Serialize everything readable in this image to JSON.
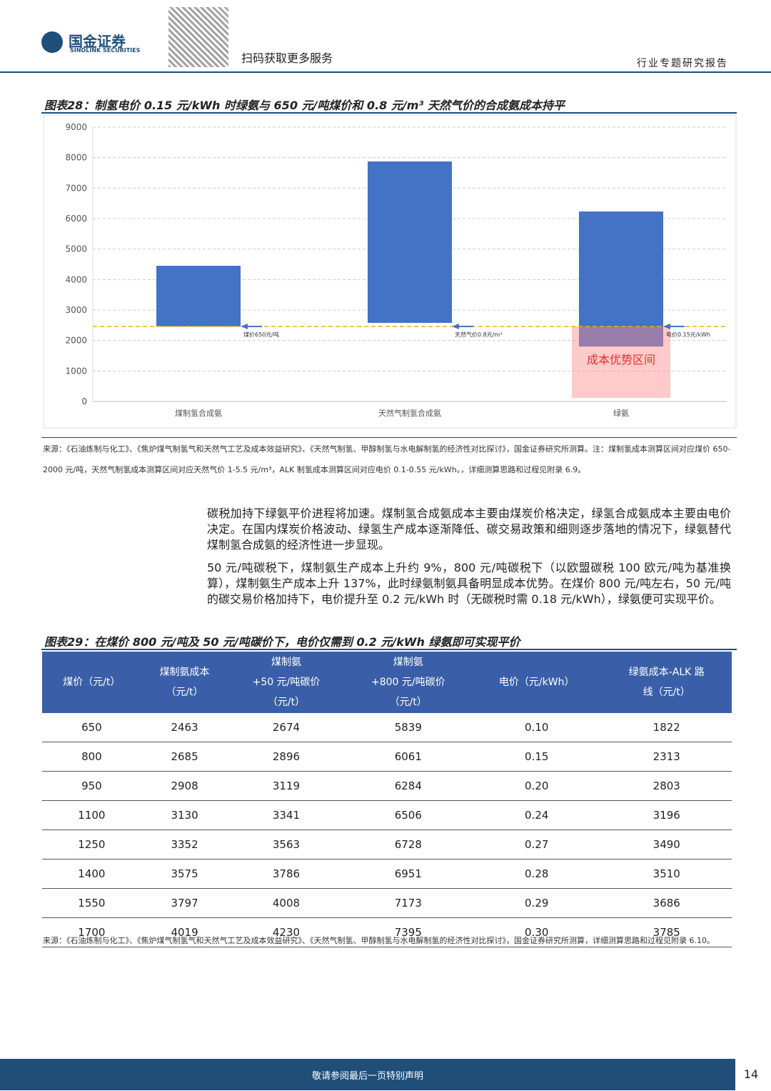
{
  "header": {
    "brand": "国金证券",
    "brand_en": "SINOLINK SECURITIES",
    "qr_text": "扫码获取更多服务",
    "report_type": "行业专题研究报告"
  },
  "figure28_title": "图表28：制氢电价 0.15 元/kWh 时绿氨与 650 元/吨煤价和 0.8 元/m³ 天然气价的合成氨成本持平",
  "chart_data": {
    "type": "floating-bar",
    "categories": [
      "煤制氢合成氨",
      "天然气制氢合成氨",
      "绿氨"
    ],
    "low": [
      2463,
      2580,
      1805
    ],
    "high": [
      4453,
      7875,
      6234
    ],
    "color": "#4472c4",
    "ylim": [
      0,
      9000
    ],
    "yticks": [
      0,
      1000,
      2000,
      3000,
      4000,
      5000,
      6000,
      7000,
      8000,
      9000
    ],
    "grid": true,
    "reference_line": 2463,
    "annotations": [
      "煤价650元/吨",
      "天然气价0.8元/m³",
      "电价0.15元/kWh"
    ],
    "zone": {
      "label": "成本优势区间",
      "range": [
        0,
        2463
      ]
    }
  },
  "source1": "来源：《石油炼制与化工》、《焦炉煤气制氢气和天然气工艺及成本效益研究》、《天然气制氢、甲醇制氢与水电解制氢的经济性对比探讨》，国金证券研究所测算。注：煤制氢成本测算区间对应煤价 650-2000 元/吨，天然气制氢成本测算区间对应天然气价 1-5.5 元/m³，ALK 制氢成本测算区间对应电价 0.1-0.55 元/kWh。，详细测算思路和过程见附录 6.9。",
  "paragraphs": [
    "碳税加持下绿氨平价进程将加速。煤制氢合成氨成本主要由煤炭价格决定，绿氢合成氨成本主要由电价决定。在国内煤炭价格波动、绿氢生产成本逐渐降低、碳交易政策和细则逐步落地的情况下，绿氨替代煤制氢合成氨的经济性进一步显现。",
    "50 元/吨碳税下，煤制氨生产成本上升约 9%，800 元/吨碳税下（以欧盟碳税 100 欧元/吨为基准换算），煤制氨生产成本上升 137%，此时绿氨制氨具备明显成本优势。在煤价 800 元/吨左右，50 元/吨的碳交易价格加持下，电价提升至 0.2 元/kWh 时（无碳税时需 0.18 元/kWh），绿氨便可实现平价。"
  ],
  "figure29_title": "图表29：在煤价 800 元/吨及 50 元/吨碳价下，电价仅需到 0.2 元/kWh 绿氨即可实现平价",
  "table": {
    "header": [
      [
        "煤价（元/t）"
      ],
      [
        "煤制氨成本",
        "（元/t）"
      ],
      [
        "煤制氨",
        "+50 元/吨碳价",
        "（元/t）"
      ],
      [
        "煤制氨",
        "+800 元/吨碳价",
        "（元/t）"
      ],
      [
        "电价（元/kWh）"
      ],
      [
        "绿氨成本-ALK 路",
        "线（元/t）"
      ]
    ],
    "rows": [
      [
        "650",
        "2463",
        "2674",
        "5839",
        "0.10",
        "1822"
      ],
      [
        "800",
        "2685",
        "2896",
        "6061",
        "0.15",
        "2313"
      ],
      [
        "950",
        "2908",
        "3119",
        "6284",
        "0.20",
        "2803"
      ],
      [
        "1100",
        "3130",
        "3341",
        "6506",
        "0.24",
        "3196"
      ],
      [
        "1250",
        "3352",
        "3563",
        "6728",
        "0.27",
        "3490"
      ],
      [
        "1400",
        "3575",
        "3786",
        "6951",
        "0.28",
        "3510"
      ],
      [
        "1550",
        "3797",
        "4008",
        "7173",
        "0.29",
        "3686"
      ],
      [
        "1700",
        "4019",
        "4230",
        "7395",
        "0.30",
        "3785"
      ]
    ]
  },
  "source2": "来源：《石油炼制与化工》、《焦炉煤气制氢气和天然气工艺及成本效益研究》、《天然气制氢、甲醇制氢与水电解制氢的经济性对比探讨》，国金证券研究所测算，详细测算思路和过程见附录 6.10。",
  "footer": {
    "notice": "敬请参阅最后一页特别声明",
    "page": "14"
  }
}
